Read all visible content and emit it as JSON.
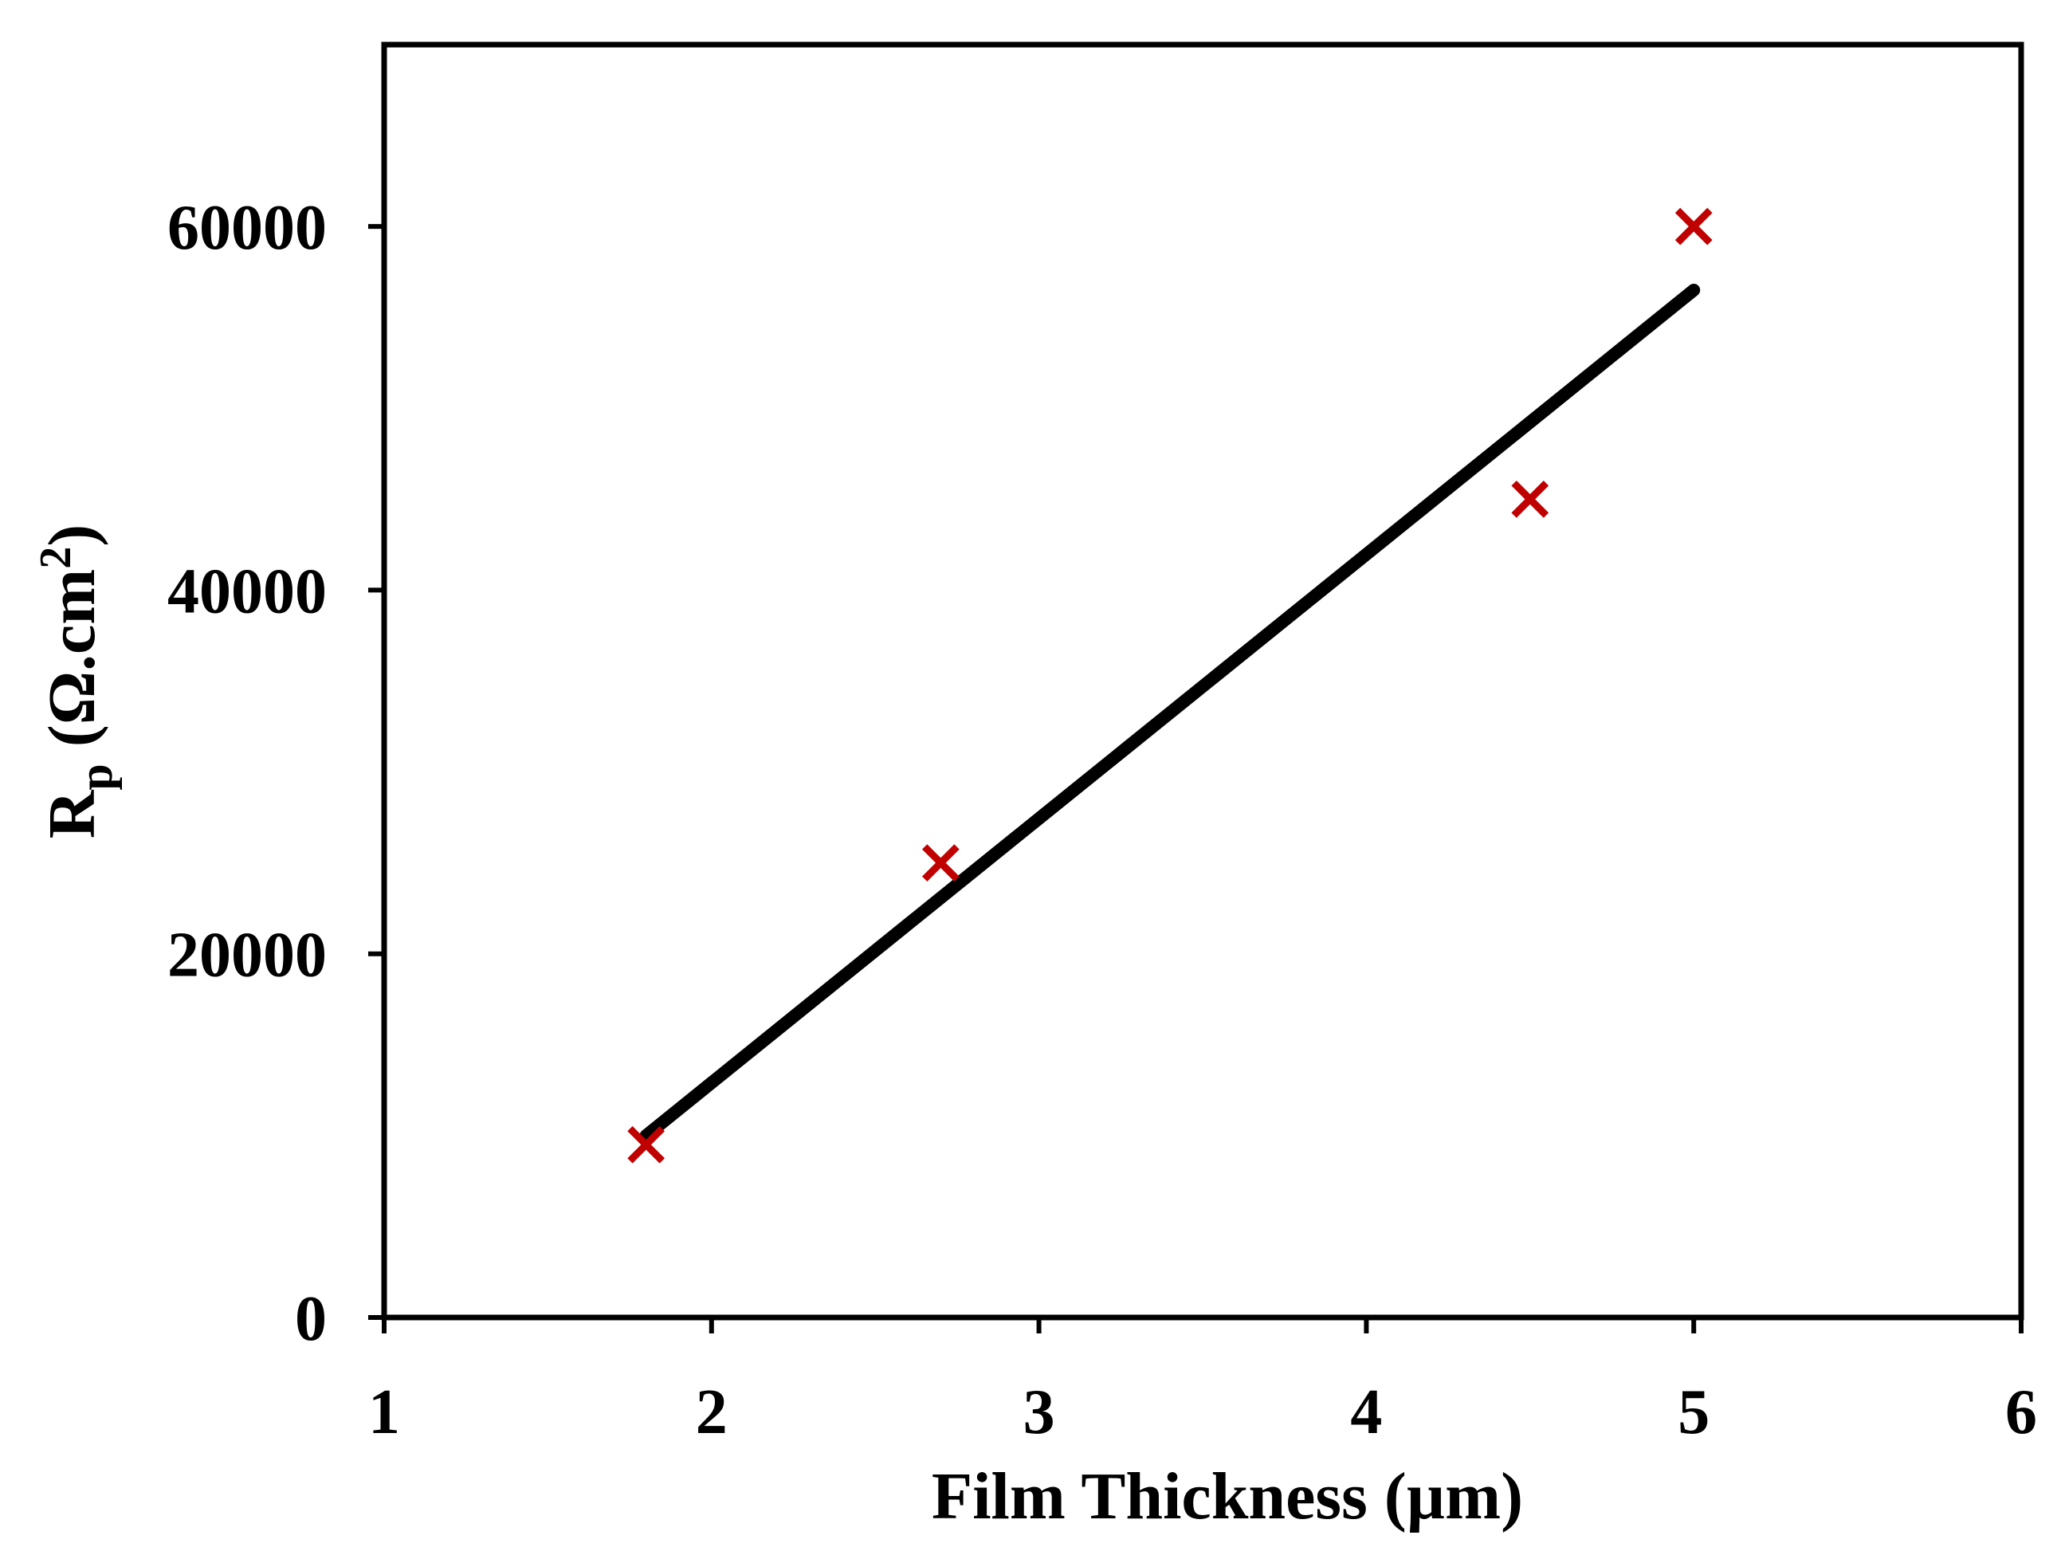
{
  "chart_data": {
    "type": "scatter",
    "xlabel": "Film Thickness (µm)",
    "ylabel_main": "R",
    "ylabel_sub": "p",
    "ylabel_unit": " (Ω.cm",
    "ylabel_sup": "2",
    "ylabel_close": ")",
    "xlim": [
      1,
      6
    ],
    "ylim": [
      0,
      70000
    ],
    "x_ticks": [
      1,
      2,
      3,
      4,
      5,
      6
    ],
    "y_ticks": [
      0,
      20000,
      40000,
      60000
    ],
    "x_tick_labels": [
      "1",
      "2",
      "3",
      "4",
      "5",
      "6"
    ],
    "y_tick_labels": [
      "0",
      "20000",
      "40000",
      "60000"
    ],
    "grid": false,
    "points": [
      {
        "x": 1.8,
        "y": 9500
      },
      {
        "x": 2.7,
        "y": 25000
      },
      {
        "x": 4.5,
        "y": 45000
      },
      {
        "x": 5.0,
        "y": 60000
      }
    ],
    "trendline": {
      "x": [
        1.8,
        5.0
      ],
      "y": [
        10000,
        56500
      ]
    },
    "colors": {
      "marker": "#c00000",
      "trendline": "#000000",
      "axes": "#000000"
    }
  }
}
